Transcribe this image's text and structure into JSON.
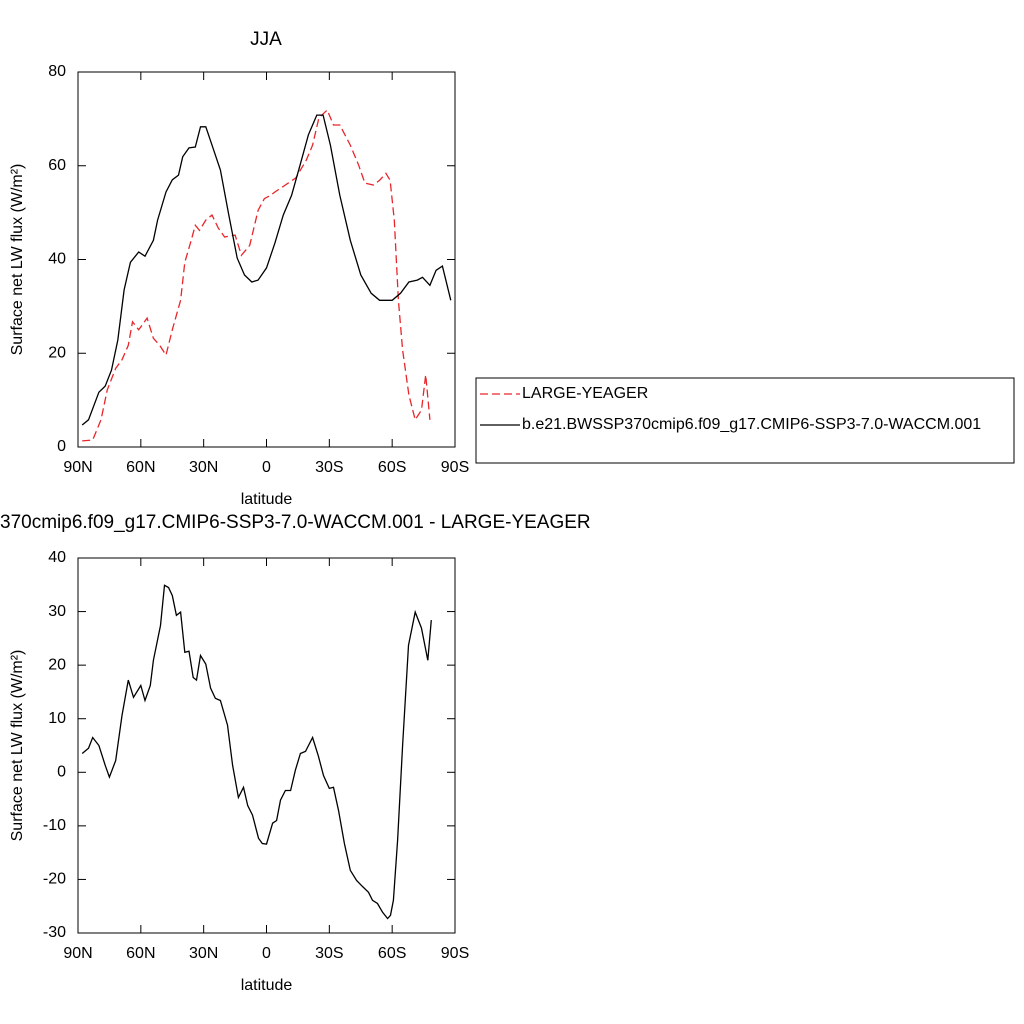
{
  "chart_data": [
    {
      "type": "line",
      "title": "JJA",
      "xlabel": "latitude",
      "ylabel": "Surface net LW flux (W/m²)",
      "xlim": [
        90,
        -90
      ],
      "xticks": [
        {
          "value": 90,
          "label": "90N"
        },
        {
          "value": 60,
          "label": "60N"
        },
        {
          "value": 30,
          "label": "30N"
        },
        0,
        {
          "value": -30,
          "label": "30S"
        },
        {
          "value": -60,
          "label": "60S"
        },
        {
          "value": -90,
          "label": "90S"
        }
      ],
      "ylim": [
        0,
        80
      ],
      "yticks": [
        0,
        20,
        40,
        60,
        80
      ],
      "legend": "right",
      "series": [
        {
          "name": "LARGE-YEAGER",
          "color": "#e8262b",
          "line_style": "dashed",
          "x": [
            88,
            83,
            79,
            76,
            72,
            69,
            66,
            64,
            61,
            57,
            54,
            51,
            48,
            45,
            41,
            39,
            36,
            34,
            32,
            29,
            26,
            23,
            20,
            15,
            12,
            8,
            4,
            1,
            -2,
            -4,
            -9,
            -14,
            -19,
            -22,
            -25,
            -29,
            -32,
            -35,
            -40,
            -44,
            -47,
            -51,
            -54,
            -57,
            -59,
            -61,
            -63,
            -65,
            -68,
            -71,
            -74,
            -76,
            -78
          ],
          "values": [
            1.3,
            1.5,
            5.8,
            12.2,
            16.8,
            18.6,
            21.7,
            26.7,
            25,
            27.5,
            23.2,
            21.7,
            19.6,
            25,
            31.3,
            39.4,
            44,
            47.3,
            46.2,
            48.4,
            49.5,
            46.7,
            44.8,
            45.2,
            40.9,
            43,
            50.5,
            53,
            53.7,
            54.4,
            55.9,
            57.4,
            61.2,
            64.4,
            70.2,
            71.9,
            68.7,
            68.7,
            64.4,
            60.1,
            56.3,
            55.9,
            56.9,
            58.4,
            56.9,
            48.4,
            31.3,
            20.7,
            11.1,
            5.8,
            7.9,
            15.4,
            5.8
          ]
        },
        {
          "name": "b.e21.BWSSP370cmip6.f09_g17.CMIP6-SSP3-7.0-WACCM.001",
          "color": "#000000",
          "line_style": "solid",
          "x": [
            88,
            85,
            80,
            77,
            74,
            71,
            68,
            65,
            61,
            58,
            54,
            52,
            48,
            45,
            42,
            40,
            37,
            34,
            31.5,
            29,
            26,
            22,
            18,
            14,
            10.5,
            7,
            4,
            0,
            -4,
            -8,
            -12,
            -16,
            -20,
            -24,
            -27,
            -30.5,
            -35,
            -40,
            -45,
            -50,
            -54,
            -60,
            -64,
            -68,
            -72,
            -74.5,
            -78,
            -81,
            -84,
            -88
          ],
          "values": [
            4.7,
            5.8,
            11.7,
            13,
            16.4,
            22.8,
            33.5,
            39.4,
            41.6,
            40.7,
            44.1,
            48.4,
            54.4,
            57,
            58,
            61.9,
            63.8,
            64,
            68.3,
            68.3,
            64.4,
            59.1,
            49.5,
            40.3,
            36.7,
            35.2,
            35.6,
            38.2,
            43.5,
            49.5,
            53.7,
            60.1,
            66.6,
            70.8,
            70.8,
            64.4,
            53.7,
            44.1,
            36.7,
            32.8,
            31.3,
            31.3,
            32.8,
            35.2,
            35.6,
            36.2,
            34.5,
            37.7,
            38.6,
            31.3
          ]
        }
      ]
    },
    {
      "type": "line",
      "title": "370cmip6.f09_g17.CMIP6-SSP3-7.0-WACCM.001 - LARGE-YEAGER",
      "xlabel": "latitude",
      "ylabel": "Surface net LW flux (W/m²)",
      "xlim": [
        90,
        -90
      ],
      "xticks": [
        {
          "value": 90,
          "label": "90N"
        },
        {
          "value": 60,
          "label": "60N"
        },
        {
          "value": 30,
          "label": "30N"
        },
        0,
        {
          "value": -30,
          "label": "30S"
        },
        {
          "value": -60,
          "label": "60S"
        },
        {
          "value": -90,
          "label": "90S"
        }
      ],
      "ylim": [
        -30,
        40
      ],
      "yticks": [
        -30,
        -20,
        -10,
        0,
        10,
        20,
        30,
        40
      ],
      "series": [
        {
          "color": "#000000",
          "line_style": "solid",
          "x": [
            88,
            85,
            83,
            80,
            77,
            75,
            72,
            69,
            66,
            63.5,
            60,
            58,
            55.5,
            54,
            50.6,
            48.7,
            46.8,
            45,
            43,
            41,
            39,
            37,
            35,
            33.4,
            31.5,
            29,
            26.7,
            24.4,
            22,
            18.6,
            16.2,
            13.4,
            11,
            9,
            6.7,
            3.8,
            2,
            0,
            -2.9,
            -4.8,
            -6.7,
            -9,
            -11.5,
            -13.8,
            -16.2,
            -18.6,
            -22,
            -24.8,
            -27.2,
            -30,
            -32,
            -34.4,
            -37.2,
            -40,
            -43,
            -45.8,
            -48.7,
            -50.6,
            -53,
            -55.4,
            -57.8,
            -59.2,
            -60.6,
            -62.6,
            -65,
            -67.8,
            -71,
            -74,
            -77,
            -78.7
          ],
          "values": [
            3.5,
            4.5,
            6.5,
            5,
            1.3,
            -0.9,
            2.2,
            10.6,
            17.2,
            14,
            16.2,
            13.4,
            16.2,
            20.9,
            27.4,
            34.9,
            34.5,
            33,
            29.3,
            29.9,
            22.4,
            22.6,
            17.7,
            17.2,
            21.8,
            20.2,
            15.7,
            13.8,
            13.4,
            8.8,
            1.3,
            -4.7,
            -2.8,
            -6.2,
            -8,
            -12.3,
            -13.3,
            -13.4,
            -9.5,
            -9,
            -5.2,
            -3.4,
            -3.4,
            0.4,
            3.5,
            3.9,
            6.5,
            3,
            -0.6,
            -3,
            -2.8,
            -7.1,
            -13.3,
            -18.3,
            -20.2,
            -21.3,
            -22.4,
            -23.9,
            -24.5,
            -26.1,
            -27.3,
            -26.7,
            -23.9,
            -12.7,
            5,
            23.7,
            29.9,
            26.9,
            20.9,
            28.4
          ]
        }
      ]
    }
  ]
}
